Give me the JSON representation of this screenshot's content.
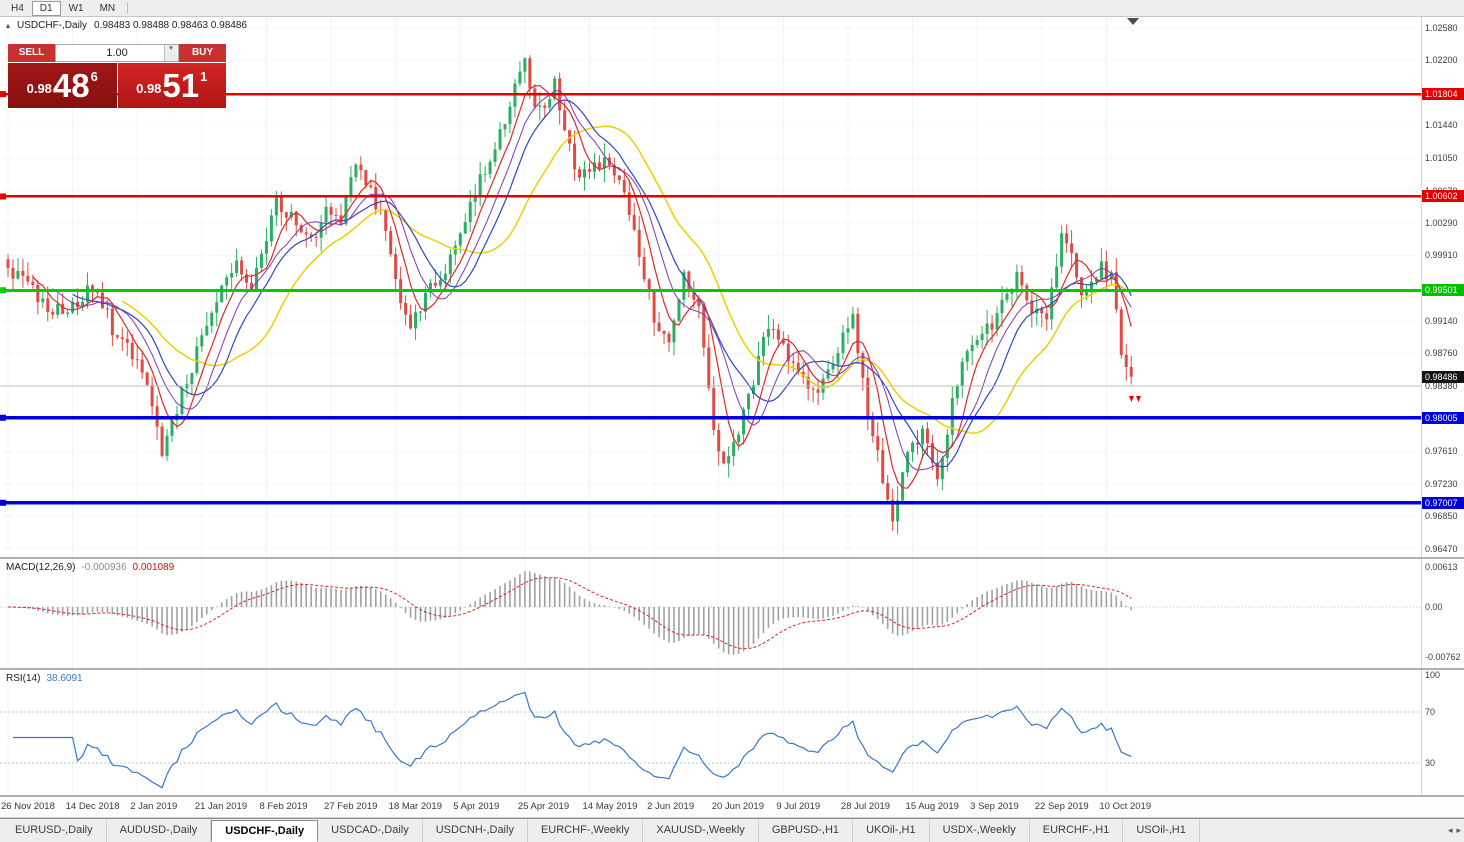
{
  "toolbar": {
    "timeframes": [
      "H4",
      "D1",
      "W1",
      "MN"
    ],
    "active": "D1"
  },
  "chart_header": {
    "collapse_icon": "▴",
    "title": "USDCHF-,Daily",
    "ohlc": "0.98483 0.98488 0.98463 0.98486"
  },
  "trade_panel": {
    "sell_label": "SELL",
    "buy_label": "BUY",
    "volume": "1.00",
    "spinner_icon": "▾",
    "sell_price": {
      "base": "0.98",
      "big": "48",
      "sup": "6"
    },
    "buy_price": {
      "base": "0.98",
      "big": "51",
      "sup": "1"
    }
  },
  "price_axis": {
    "ticks": [
      {
        "label": "1.02580",
        "value": 1.0258
      },
      {
        "label": "1.02200",
        "value": 1.022
      },
      {
        "label": "1.01440",
        "value": 1.0144
      },
      {
        "label": "1.01050",
        "value": 1.0105
      },
      {
        "label": "1.00670",
        "value": 1.0067
      },
      {
        "label": "1.00290",
        "value": 1.0029
      },
      {
        "label": "0.99910",
        "value": 0.9991
      },
      {
        "label": "0.99140",
        "value": 0.9914
      },
      {
        "label": "0.98760",
        "value": 0.9876
      },
      {
        "label": "0.98380",
        "value": 0.9838
      },
      {
        "label": "0.97610",
        "value": 0.9761
      },
      {
        "label": "0.97230",
        "value": 0.9723
      },
      {
        "label": "0.96850",
        "value": 0.9685
      },
      {
        "label": "0.96470",
        "value": 0.9647
      }
    ],
    "tags": [
      {
        "label": "1.01804",
        "value": 1.01804,
        "color": "#e00000"
      },
      {
        "label": "1.00602",
        "value": 1.00602,
        "color": "#e00000"
      },
      {
        "label": "0.99501",
        "value": 0.99501,
        "color": "#00c000"
      },
      {
        "label": "0.98486",
        "value": 0.98486,
        "color": "#141414"
      },
      {
        "label": "0.98005",
        "value": 0.98005,
        "color": "#0000d8"
      },
      {
        "label": "0.97007",
        "value": 0.97007,
        "color": "#0000d8"
      }
    ]
  },
  "levels": [
    {
      "value": 1.01804,
      "color": "#e00000",
      "width": 2.5,
      "marker": true
    },
    {
      "value": 1.00602,
      "color": "#e00000",
      "width": 2.5,
      "marker": true
    },
    {
      "value": 0.99501,
      "color": "#00cc00",
      "width": 3,
      "marker": true
    },
    {
      "value": 0.9838,
      "color": "#bcbcbc",
      "width": 1,
      "marker": false
    },
    {
      "value": 0.98005,
      "color": "#0000d8",
      "width": 3.5,
      "marker": true
    },
    {
      "value": 0.97007,
      "color": "#0000d8",
      "width": 3.5,
      "marker": true
    }
  ],
  "indicators": {
    "macd": {
      "label": "MACD(12,26,9)",
      "main_value": "-0.000936",
      "signal_value": "0.001089",
      "axis": [
        "0.00613",
        "0.00",
        "-0.00762"
      ],
      "fast": 12,
      "slow": 26,
      "signal": 9,
      "hist_color": "#a0a0a0",
      "signal_color": "#dd2222"
    },
    "rsi": {
      "label": "RSI(14)",
      "value": "38.6091",
      "period": 14,
      "axis": [
        {
          "label": "100",
          "v": 100
        },
        {
          "label": "70",
          "v": 70
        },
        {
          "label": "30",
          "v": 30
        }
      ],
      "levels": [
        70,
        30
      ],
      "color": "#3878c8"
    }
  },
  "chart_data": {
    "type": "candlestick",
    "symbol": "USDCHF-",
    "timeframe": "Daily",
    "bars": 227,
    "last_close": 0.98486,
    "bull_color": "#2aaf60",
    "bear_color": "#e04a42",
    "price_path": [
      [
        0,
        0.9975
      ],
      [
        4,
        0.9958
      ],
      [
        8,
        0.993
      ],
      [
        12,
        0.9922
      ],
      [
        15,
        0.9945
      ],
      [
        18,
        0.9952
      ],
      [
        21,
        0.9905
      ],
      [
        24,
        0.988
      ],
      [
        27,
        0.9862
      ],
      [
        29,
        0.982
      ],
      [
        31,
        0.9762
      ],
      [
        33,
        0.9795
      ],
      [
        36,
        0.9845
      ],
      [
        39,
        0.9895
      ],
      [
        43,
        0.9958
      ],
      [
        46,
        0.9985
      ],
      [
        49,
        0.9952
      ],
      [
        52,
        1.001
      ],
      [
        54,
        1.0058
      ],
      [
        56,
        1.0042
      ],
      [
        59,
        1.0018
      ],
      [
        61,
        1.0005
      ],
      [
        64,
        1.0042
      ],
      [
        67,
        1.0025
      ],
      [
        70,
        1.0102
      ],
      [
        73,
        1.007
      ],
      [
        76,
        1.0022
      ],
      [
        79,
        0.9932
      ],
      [
        81,
        0.9912
      ],
      [
        84,
        0.9945
      ],
      [
        88,
        0.9978
      ],
      [
        91,
        1.0015
      ],
      [
        94,
        1.0062
      ],
      [
        97,
        1.0108
      ],
      [
        100,
        1.0152
      ],
      [
        102,
        1.019
      ],
      [
        104,
        1.0218
      ],
      [
        106,
        1.0172
      ],
      [
        108,
        1.0158
      ],
      [
        110,
        1.0202
      ],
      [
        112,
        1.0138
      ],
      [
        115,
        1.0078
      ],
      [
        118,
        1.0095
      ],
      [
        121,
        1.0098
      ],
      [
        124,
        1.0068
      ],
      [
        127,
        0.9992
      ],
      [
        130,
        0.9915
      ],
      [
        133,
        0.989
      ],
      [
        136,
        0.9965
      ],
      [
        139,
        0.993
      ],
      [
        142,
        0.9788
      ],
      [
        144,
        0.9742
      ],
      [
        147,
        0.9782
      ],
      [
        150,
        0.9848
      ],
      [
        153,
        0.9908
      ],
      [
        156,
        0.9882
      ],
      [
        159,
        0.9862
      ],
      [
        162,
        0.9832
      ],
      [
        165,
        0.9852
      ],
      [
        168,
        0.9898
      ],
      [
        170,
        0.9918
      ],
      [
        173,
        0.9802
      ],
      [
        176,
        0.9732
      ],
      [
        178,
        0.9682
      ],
      [
        181,
        0.9765
      ],
      [
        184,
        0.978
      ],
      [
        187,
        0.9732
      ],
      [
        190,
        0.9815
      ],
      [
        193,
        0.9885
      ],
      [
        196,
        0.9898
      ],
      [
        199,
        0.992
      ],
      [
        203,
        0.9965
      ],
      [
        206,
        0.9928
      ],
      [
        209,
        0.9912
      ],
      [
        212,
        1.0012
      ],
      [
        214,
        0.9985
      ],
      [
        216,
        0.9945
      ],
      [
        218,
        0.9958
      ],
      [
        220,
        0.9975
      ],
      [
        222,
        0.9968
      ],
      [
        224,
        0.9872
      ],
      [
        226,
        0.98486
      ]
    ],
    "moving_averages": [
      {
        "period": 24,
        "color": "#ecd000",
        "width": 1.5
      },
      {
        "period": 14,
        "color": "#3048c0",
        "width": 1.2
      },
      {
        "period": 10,
        "color": "#8438b4",
        "width": 1
      },
      {
        "period": 6,
        "color": "#e02828",
        "width": 1.2
      }
    ],
    "x_axis_dates": [
      {
        "label": "26 Nov 2018",
        "bar": 0
      },
      {
        "label": "14 Dec 2018",
        "bar": 13
      },
      {
        "label": "2 Jan 2019",
        "bar": 26
      },
      {
        "label": "21 Jan 2019",
        "bar": 39
      },
      {
        "label": "8 Feb 2019",
        "bar": 52
      },
      {
        "label": "27 Feb 2019",
        "bar": 65
      },
      {
        "label": "18 Mar 2019",
        "bar": 78
      },
      {
        "label": "5 Apr 2019",
        "bar": 91
      },
      {
        "label": "25 Apr 2019",
        "bar": 104
      },
      {
        "label": "14 May 2019",
        "bar": 117
      },
      {
        "label": "2 Jun 2019",
        "bar": 130
      },
      {
        "label": "20 Jun 2019",
        "bar": 143
      },
      {
        "label": "9 Jul 2019",
        "bar": 156
      },
      {
        "label": "28 Jul 2019",
        "bar": 169
      },
      {
        "label": "15 Aug 2019",
        "bar": 182
      },
      {
        "label": "3 Sep 2019",
        "bar": 195
      },
      {
        "label": "22 Sep 2019",
        "bar": 208
      },
      {
        "label": "10 Oct 2019",
        "bar": 221
      }
    ]
  },
  "tabbar": {
    "tabs": [
      "EURUSD-,Daily",
      "AUDUSD-,Daily",
      "USDCHF-,Daily",
      "USDCAD-,Daily",
      "USDCNH-,Daily",
      "EURCHF-,Weekly",
      "XAUUSD-,Weekly",
      "GBPUSD-,H1",
      "UKOil-,H1",
      "USDX-,Weekly",
      "EURCHF-,H1",
      "USOil-,H1"
    ],
    "active_index": 2,
    "scroll_left": "◂",
    "scroll_right": "▸"
  }
}
